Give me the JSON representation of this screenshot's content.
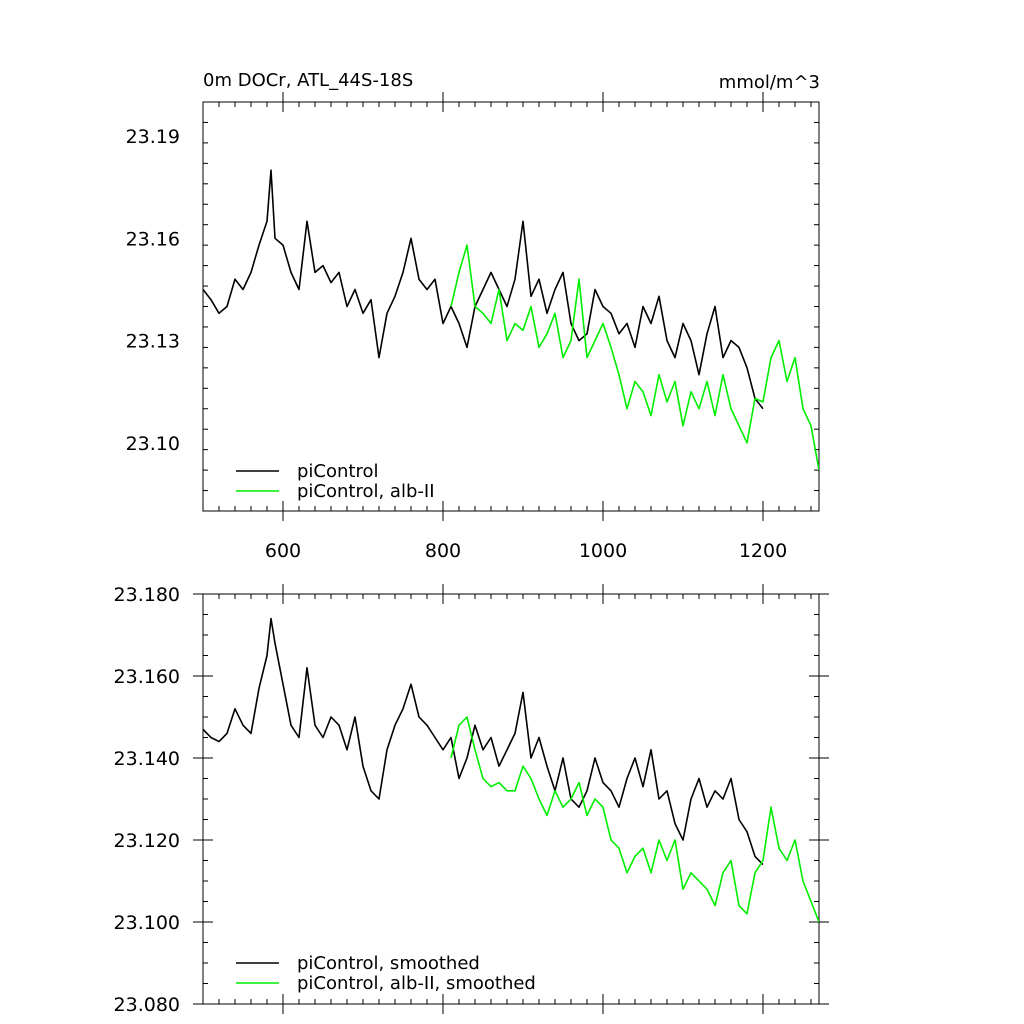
{
  "chart_data": [
    {
      "type": "line",
      "title": "0m DOCr, ATL_44S-18S",
      "units": "mmol/m^3",
      "xlim": [
        500,
        1270
      ],
      "ylim": [
        23.08,
        23.2
      ],
      "xticks": [
        "600",
        "800",
        "1000",
        "1200"
      ],
      "yticks": [
        "23.19",
        "23.16",
        "23.13",
        "23.10"
      ],
      "legend_position": "bottom-left",
      "grid": false,
      "series": [
        {
          "name": "piControl",
          "color": "#000000",
          "x": [
            500,
            510,
            520,
            530,
            540,
            550,
            560,
            570,
            580,
            585,
            590,
            600,
            610,
            620,
            630,
            640,
            650,
            660,
            670,
            680,
            690,
            700,
            710,
            720,
            730,
            740,
            750,
            760,
            770,
            780,
            790,
            800,
            810,
            820,
            830,
            840,
            850,
            860,
            870,
            880,
            890,
            900,
            910,
            920,
            930,
            940,
            950,
            960,
            970,
            980,
            990,
            1000,
            1010,
            1020,
            1030,
            1040,
            1050,
            1060,
            1070,
            1080,
            1090,
            1100,
            1110,
            1120,
            1130,
            1140,
            1150,
            1160,
            1170,
            1180,
            1190,
            1200
          ],
          "y": [
            23.145,
            23.142,
            23.138,
            23.14,
            23.148,
            23.145,
            23.15,
            23.158,
            23.165,
            23.18,
            23.16,
            23.158,
            23.15,
            23.145,
            23.165,
            23.15,
            23.152,
            23.147,
            23.15,
            23.14,
            23.145,
            23.138,
            23.142,
            23.125,
            23.138,
            23.143,
            23.15,
            23.16,
            23.148,
            23.145,
            23.148,
            23.135,
            23.14,
            23.135,
            23.128,
            23.14,
            23.145,
            23.15,
            23.145,
            23.14,
            23.148,
            23.165,
            23.143,
            23.148,
            23.138,
            23.145,
            23.15,
            23.135,
            23.13,
            23.132,
            23.145,
            23.14,
            23.138,
            23.132,
            23.135,
            23.128,
            23.14,
            23.135,
            23.143,
            23.13,
            23.125,
            23.135,
            23.13,
            23.12,
            23.132,
            23.14,
            23.125,
            23.13,
            23.128,
            23.122,
            23.113,
            23.11
          ]
        },
        {
          "name": "piControl, alb-II",
          "color": "#00ee00",
          "x": [
            810,
            820,
            830,
            840,
            850,
            860,
            870,
            880,
            890,
            900,
            910,
            920,
            930,
            940,
            950,
            960,
            970,
            980,
            990,
            1000,
            1010,
            1020,
            1030,
            1040,
            1050,
            1060,
            1070,
            1080,
            1090,
            1100,
            1110,
            1120,
            1130,
            1140,
            1150,
            1160,
            1170,
            1180,
            1190,
            1200,
            1210,
            1220,
            1230,
            1240,
            1250,
            1260,
            1270
          ],
          "y": [
            23.14,
            23.15,
            23.158,
            23.14,
            23.138,
            23.135,
            23.145,
            23.13,
            23.135,
            23.133,
            23.14,
            23.128,
            23.132,
            23.138,
            23.125,
            23.13,
            23.148,
            23.125,
            23.13,
            23.135,
            23.128,
            23.12,
            23.11,
            23.118,
            23.115,
            23.108,
            23.12,
            23.112,
            23.118,
            23.105,
            23.115,
            23.11,
            23.118,
            23.108,
            23.12,
            23.11,
            23.105,
            23.1,
            23.113,
            23.112,
            23.125,
            23.13,
            23.118,
            23.125,
            23.11,
            23.105,
            23.092
          ]
        }
      ]
    },
    {
      "type": "line",
      "xlim": [
        500,
        1270
      ],
      "ylim": [
        23.08,
        23.18
      ],
      "yticks": [
        "23.180",
        "23.160",
        "23.140",
        "23.120",
        "23.100",
        "23.080"
      ],
      "legend_position": "bottom-left",
      "grid": false,
      "series": [
        {
          "name": "piControl, smoothed",
          "color": "#000000",
          "x": [
            500,
            510,
            520,
            530,
            540,
            550,
            560,
            570,
            580,
            585,
            590,
            600,
            610,
            620,
            630,
            640,
            650,
            660,
            670,
            680,
            690,
            700,
            710,
            720,
            730,
            740,
            750,
            760,
            770,
            780,
            790,
            800,
            810,
            820,
            830,
            840,
            850,
            860,
            870,
            880,
            890,
            900,
            910,
            920,
            930,
            940,
            950,
            960,
            970,
            980,
            990,
            1000,
            1010,
            1020,
            1030,
            1040,
            1050,
            1060,
            1070,
            1080,
            1090,
            1100,
            1110,
            1120,
            1130,
            1140,
            1150,
            1160,
            1170,
            1180,
            1190,
            1200
          ],
          "y": [
            23.147,
            23.145,
            23.144,
            23.146,
            23.152,
            23.148,
            23.146,
            23.157,
            23.165,
            23.174,
            23.168,
            23.158,
            23.148,
            23.145,
            23.162,
            23.148,
            23.145,
            23.15,
            23.148,
            23.142,
            23.15,
            23.138,
            23.132,
            23.13,
            23.142,
            23.148,
            23.152,
            23.158,
            23.15,
            23.148,
            23.145,
            23.142,
            23.145,
            23.135,
            23.14,
            23.148,
            23.142,
            23.145,
            23.138,
            23.142,
            23.146,
            23.156,
            23.14,
            23.145,
            23.138,
            23.132,
            23.14,
            23.13,
            23.128,
            23.132,
            23.14,
            23.134,
            23.132,
            23.128,
            23.135,
            23.14,
            23.133,
            23.142,
            23.13,
            23.132,
            23.124,
            23.12,
            23.13,
            23.135,
            23.128,
            23.132,
            23.13,
            23.135,
            23.125,
            23.122,
            23.116,
            23.114
          ]
        },
        {
          "name": "piControl, alb-II, smoothed",
          "color": "#00ee00",
          "x": [
            810,
            820,
            830,
            840,
            850,
            860,
            870,
            880,
            890,
            900,
            910,
            920,
            930,
            940,
            950,
            960,
            970,
            980,
            990,
            1000,
            1010,
            1020,
            1030,
            1040,
            1050,
            1060,
            1070,
            1080,
            1090,
            1100,
            1110,
            1120,
            1130,
            1140,
            1150,
            1160,
            1170,
            1180,
            1190,
            1200,
            1210,
            1220,
            1230,
            1240,
            1250,
            1260,
            1270
          ],
          "y": [
            23.14,
            23.148,
            23.15,
            23.142,
            23.135,
            23.133,
            23.134,
            23.132,
            23.132,
            23.138,
            23.135,
            23.13,
            23.126,
            23.132,
            23.128,
            23.13,
            23.134,
            23.126,
            23.13,
            23.128,
            23.12,
            23.118,
            23.112,
            23.116,
            23.118,
            23.112,
            23.12,
            23.115,
            23.12,
            23.108,
            23.112,
            23.11,
            23.108,
            23.104,
            23.112,
            23.115,
            23.104,
            23.102,
            23.112,
            23.115,
            23.128,
            23.118,
            23.115,
            23.12,
            23.11,
            23.105,
            23.1
          ]
        }
      ]
    }
  ]
}
